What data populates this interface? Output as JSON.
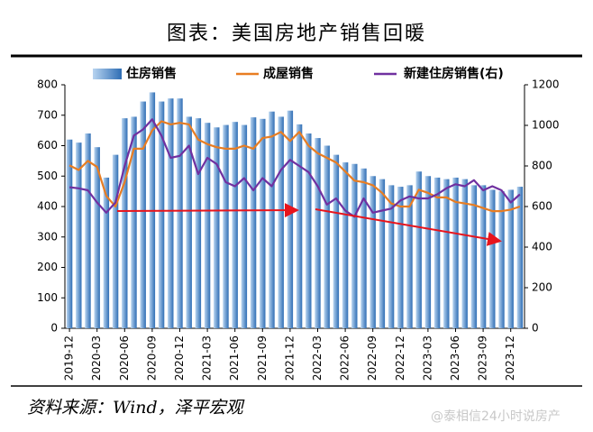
{
  "chart_data": {
    "type": "bar_line_dual",
    "title": "图表：美国房地产销售回暖",
    "source": "资料来源：Wind，泽平宏观",
    "watermark": "@泰相信24小时说房产",
    "categories": [
      "2019-12",
      null,
      null,
      "2020-03",
      null,
      null,
      "2020-06",
      null,
      null,
      "2020-09",
      null,
      null,
      "2020-12",
      null,
      null,
      "2021-03",
      null,
      null,
      "2021-06",
      null,
      null,
      "2021-09",
      null,
      null,
      "2021-12",
      null,
      null,
      "2022-03",
      null,
      null,
      "2022-06",
      null,
      null,
      "2022-09",
      null,
      null,
      "2022-12",
      null,
      null,
      "2023-03",
      null,
      null,
      "2023-06",
      null,
      null,
      "2023-09",
      null,
      null,
      "2023-12",
      null
    ],
    "series": [
      {
        "name": "住房销售",
        "type": "bar",
        "color": "#2e6db4",
        "values": [
          620,
          610,
          640,
          595,
          495,
          570,
          690,
          695,
          745,
          775,
          745,
          755,
          755,
          695,
          690,
          675,
          660,
          668,
          678,
          668,
          693,
          688,
          712,
          695,
          715,
          670,
          640,
          625,
          600,
          570,
          545,
          540,
          525,
          500,
          490,
          470,
          465,
          470,
          515,
          500,
          495,
          490,
          495,
          490,
          470,
          470,
          455,
          450,
          455,
          465
        ]
      },
      {
        "name": "成屋销售",
        "type": "line",
        "color": "#e87d22",
        "values": [
          535,
          520,
          550,
          530,
          435,
          400,
          480,
          590,
          590,
          650,
          680,
          670,
          675,
          670,
          620,
          605,
          595,
          590,
          590,
          600,
          590,
          625,
          630,
          645,
          615,
          645,
          600,
          575,
          560,
          545,
          515,
          485,
          480,
          470,
          445,
          410,
          400,
          400,
          455,
          445,
          430,
          430,
          415,
          410,
          405,
          395,
          385,
          385,
          390,
          400
        ]
      },
      {
        "name": "新建住房销售(右)",
        "type": "line",
        "axis": "y2",
        "color": "#7030a0",
        "values": [
          695,
          690,
          680,
          620,
          570,
          620,
          800,
          950,
          980,
          1030,
          950,
          840,
          850,
          900,
          760,
          840,
          810,
          720,
          700,
          740,
          680,
          740,
          700,
          780,
          830,
          800,
          770,
          700,
          610,
          640,
          580,
          550,
          640,
          570,
          580,
          590,
          630,
          650,
          640,
          640,
          660,
          690,
          710,
          700,
          730,
          680,
          700,
          680,
          620,
          660
        ]
      }
    ],
    "ylim": [
      0,
      800
    ],
    "yticks": [
      0,
      100,
      200,
      300,
      400,
      500,
      600,
      700,
      800
    ],
    "y2lim": [
      0,
      1200
    ],
    "y2ticks": [
      0,
      200,
      400,
      600,
      800,
      1000,
      1200
    ]
  }
}
